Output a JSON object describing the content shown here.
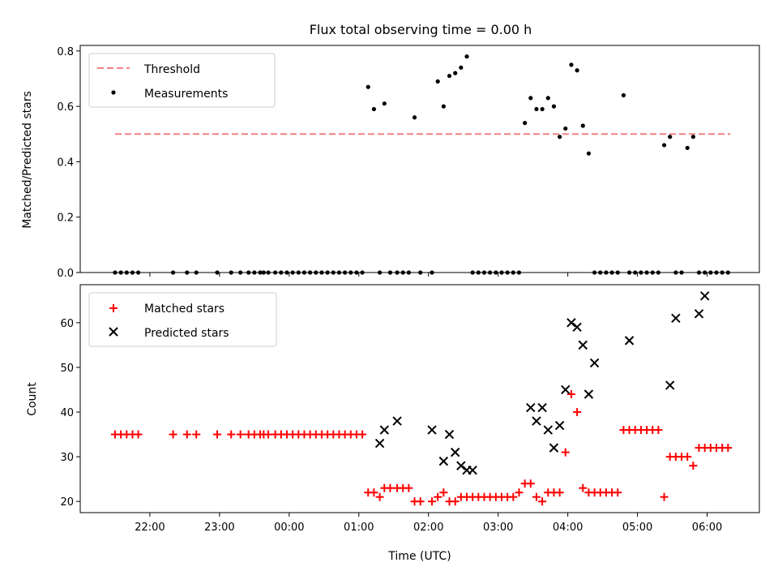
{
  "chart_data": [
    {
      "type": "scatter",
      "title": "Flux total observing time = 0.00 h",
      "ylabel": "Matched/Predicted stars",
      "xlabel": "",
      "ylim": [
        0,
        0.82
      ],
      "yticks": [
        0.0,
        0.2,
        0.4,
        0.6,
        0.8
      ],
      "ytick_labels": [
        "0.0",
        "0.2",
        "0.4",
        "0.6",
        "0.8"
      ],
      "legend": {
        "placement": "top-left",
        "entries": [
          "Threshold",
          "Measurements"
        ]
      },
      "threshold": {
        "name": "Threshold",
        "value": 0.5,
        "x_range": [
          "21:30",
          "06:20"
        ],
        "color": "#f08080"
      },
      "series": [
        {
          "name": "Measurements",
          "color": "#000000",
          "x": [
            "21:30",
            "21:35",
            "21:40",
            "21:45",
            "21:50",
            "22:20",
            "22:32",
            "22:40",
            "22:58",
            "23:10",
            "23:18",
            "23:25",
            "23:30",
            "23:35",
            "23:38",
            "23:42",
            "23:48",
            "23:53",
            "23:58",
            "00:03",
            "00:08",
            "00:13",
            "00:18",
            "00:23",
            "00:28",
            "00:33",
            "00:38",
            "00:43",
            "00:48",
            "00:53",
            "00:58",
            "01:03",
            "01:08",
            "01:13",
            "01:18",
            "01:22",
            "01:27",
            "01:33",
            "01:38",
            "01:43",
            "01:48",
            "01:53",
            "02:03",
            "02:08",
            "02:13",
            "02:18",
            "02:23",
            "02:28",
            "02:33",
            "02:38",
            "02:43",
            "02:48",
            "02:53",
            "02:58",
            "03:03",
            "03:08",
            "03:13",
            "03:18",
            "03:23",
            "03:28",
            "03:33",
            "03:38",
            "03:43",
            "03:48",
            "03:53",
            "03:58",
            "04:03",
            "04:08",
            "04:13",
            "04:18",
            "04:23",
            "04:28",
            "04:33",
            "04:38",
            "04:43",
            "04:48",
            "04:53",
            "04:58",
            "05:03",
            "05:08",
            "05:13",
            "05:18",
            "05:23",
            "05:28",
            "05:33",
            "05:38",
            "05:43",
            "05:48",
            "05:53",
            "05:58",
            "06:03",
            "06:08",
            "06:13",
            "06:18"
          ],
          "y": [
            0,
            0,
            0,
            0,
            0,
            0,
            0,
            0,
            0,
            0,
            0,
            0,
            0,
            0,
            0,
            0,
            0,
            0,
            0,
            0,
            0,
            0,
            0,
            0,
            0,
            0,
            0,
            0,
            0,
            0,
            0,
            0,
            0.67,
            0.59,
            0,
            0.61,
            0,
            0,
            0,
            0,
            0.56,
            0,
            0,
            0.69,
            0.6,
            0.71,
            0.72,
            0.74,
            0.78,
            0,
            0,
            0,
            0,
            0,
            0,
            0,
            0,
            0,
            0.54,
            0.63,
            0.59,
            0.59,
            0.63,
            0.6,
            0.49,
            0.52,
            0.75,
            0.73,
            0.53,
            0.43,
            0,
            0,
            0,
            0,
            0,
            0.64,
            0,
            0,
            0,
            0,
            0,
            0,
            0.46,
            0.49,
            0,
            0,
            0.45,
            0.49,
            0,
            0,
            0,
            0,
            0,
            0
          ]
        }
      ]
    },
    {
      "type": "scatter",
      "title": "",
      "ylabel": "Count",
      "xlabel": "Time (UTC)",
      "ylim": [
        17.5,
        68.5
      ],
      "yticks": [
        20,
        30,
        40,
        50,
        60
      ],
      "ytick_labels": [
        "20",
        "30",
        "40",
        "50",
        "60"
      ],
      "xlim": [
        "21:00",
        "06:45"
      ],
      "xticks": [
        "22:00",
        "23:00",
        "00:00",
        "01:00",
        "02:00",
        "03:00",
        "04:00",
        "05:00",
        "06:00"
      ],
      "legend": {
        "placement": "top-left",
        "entries": [
          "Matched stars",
          "Predicted stars"
        ]
      },
      "series": [
        {
          "name": "Matched stars",
          "color": "#ff0000",
          "marker": "plus",
          "x": [
            "21:30",
            "21:35",
            "21:40",
            "21:45",
            "21:50",
            "22:20",
            "22:32",
            "22:40",
            "22:58",
            "23:10",
            "23:18",
            "23:25",
            "23:30",
            "23:35",
            "23:38",
            "23:42",
            "23:48",
            "23:53",
            "23:58",
            "00:03",
            "00:08",
            "00:13",
            "00:18",
            "00:23",
            "00:28",
            "00:33",
            "00:38",
            "00:43",
            "00:48",
            "00:53",
            "00:58",
            "01:03",
            "01:08",
            "01:13",
            "01:18",
            "01:22",
            "01:27",
            "01:33",
            "01:38",
            "01:43",
            "01:48",
            "01:53",
            "02:03",
            "02:08",
            "02:13",
            "02:18",
            "02:23",
            "02:28",
            "02:33",
            "02:38",
            "02:43",
            "02:48",
            "02:53",
            "02:58",
            "03:03",
            "03:08",
            "03:13",
            "03:18",
            "03:23",
            "03:28",
            "03:33",
            "03:38",
            "03:43",
            "03:48",
            "03:53",
            "03:58",
            "04:03",
            "04:08",
            "04:13",
            "04:18",
            "04:23",
            "04:28",
            "04:33",
            "04:38",
            "04:43",
            "04:48",
            "04:53",
            "04:58",
            "05:03",
            "05:08",
            "05:13",
            "05:18",
            "05:23",
            "05:28",
            "05:33",
            "05:38",
            "05:43",
            "05:48",
            "05:53",
            "05:58",
            "06:03",
            "06:08",
            "06:13",
            "06:18"
          ],
          "y": [
            35,
            35,
            35,
            35,
            35,
            35,
            35,
            35,
            35,
            35,
            35,
            35,
            35,
            35,
            35,
            35,
            35,
            35,
            35,
            35,
            35,
            35,
            35,
            35,
            35,
            35,
            35,
            35,
            35,
            35,
            35,
            35,
            22,
            22,
            21,
            23,
            23,
            23,
            23,
            23,
            20,
            20,
            20,
            21,
            22,
            20,
            20,
            21,
            21,
            21,
            21,
            21,
            21,
            21,
            21,
            21,
            21,
            22,
            24,
            24,
            21,
            20,
            22,
            22,
            22,
            31,
            44,
            40,
            23,
            22,
            22,
            22,
            22,
            22,
            22,
            36,
            36,
            36,
            36,
            36,
            36,
            36,
            21,
            30,
            30,
            30,
            30,
            28,
            32,
            32,
            32,
            32,
            32,
            32
          ]
        },
        {
          "name": "Predicted stars",
          "color": "#000000",
          "marker": "x",
          "x": [
            "01:18",
            "01:22",
            "01:33",
            "02:03",
            "02:13",
            "02:18",
            "02:23",
            "02:28",
            "02:33",
            "02:38",
            "03:28",
            "03:33",
            "03:38",
            "03:43",
            "03:48",
            "03:53",
            "03:58",
            "04:03",
            "04:08",
            "04:13",
            "04:18",
            "04:23",
            "04:53",
            "05:28",
            "05:33",
            "05:53",
            "05:58"
          ],
          "y": [
            33,
            36,
            38,
            36,
            29,
            35,
            31,
            28,
            27,
            27,
            41,
            38,
            41,
            36,
            32,
            37,
            45,
            60,
            59,
            55,
            44,
            51,
            56,
            46,
            61,
            62,
            66
          ]
        }
      ]
    }
  ]
}
